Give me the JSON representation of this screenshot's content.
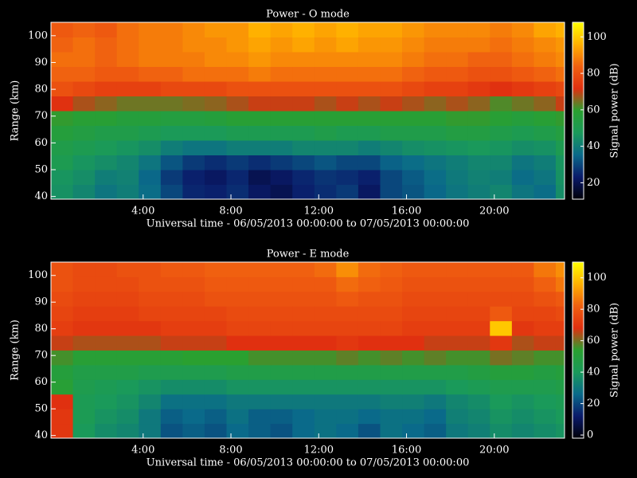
{
  "chart_data": [
    {
      "type": "heatmap",
      "title": "Power - O mode",
      "xlabel": "Universal time - 06/05/2013 00:00:00 to 07/05/2013 00:00:00",
      "ylabel": "Range (km)",
      "colorbar_label": "Signal power (dB)",
      "xlim": [
        -0.2,
        23.2
      ],
      "xticks": [
        {
          "value": 4,
          "label": "4:00"
        },
        {
          "value": 8,
          "label": "8:00"
        },
        {
          "value": 12,
          "label": "12:00"
        },
        {
          "value": 16,
          "label": "16:00"
        },
        {
          "value": 20,
          "label": "20:00"
        }
      ],
      "ylim": [
        39,
        105
      ],
      "yticks": [
        40,
        50,
        60,
        70,
        80,
        90,
        100
      ],
      "clim": [
        11,
        108
      ],
      "cticks": [
        20,
        40,
        60,
        80,
        100
      ],
      "colormap": [
        "#000008",
        "#0a1a6a",
        "#0a6a8a",
        "#1a9a5a",
        "#2aa030",
        "#e03010",
        "#f06010",
        "#ffb000",
        "#ffff00"
      ],
      "xbins": [
        -0.2,
        0.8,
        1.8,
        2.8,
        3.8,
        4.8,
        5.8,
        6.8,
        7.8,
        8.8,
        9.8,
        10.8,
        11.8,
        12.8,
        13.8,
        14.8,
        15.8,
        16.8,
        17.8,
        18.8,
        19.8,
        20.8,
        21.8,
        22.8,
        23.2
      ],
      "ybins": [
        39,
        44.5,
        50,
        55.5,
        61,
        66.5,
        72,
        77.5,
        83,
        88.5,
        94,
        99.5,
        105
      ],
      "z": [
        [
          45,
          42,
          38,
          40,
          36,
          30,
          25,
          24,
          26,
          22,
          20,
          24,
          26,
          28,
          22,
          30,
          32,
          35,
          38,
          40,
          42,
          38,
          36,
          44
        ],
        [
          46,
          44,
          40,
          41,
          35,
          28,
          24,
          22,
          25,
          20,
          22,
          25,
          27,
          26,
          24,
          30,
          33,
          36,
          39,
          41,
          40,
          36,
          38,
          45
        ],
        [
          50,
          46,
          44,
          42,
          38,
          32,
          28,
          26,
          28,
          26,
          28,
          30,
          32,
          30,
          30,
          34,
          36,
          38,
          40,
          42,
          42,
          38,
          40,
          46
        ],
        [
          52,
          50,
          48,
          46,
          44,
          40,
          38,
          38,
          40,
          40,
          40,
          42,
          42,
          42,
          40,
          42,
          44,
          45,
          46,
          47,
          46,
          44,
          45,
          50
        ],
        [
          56,
          54,
          52,
          52,
          50,
          48,
          48,
          48,
          50,
          50,
          50,
          50,
          52,
          50,
          50,
          52,
          52,
          52,
          54,
          54,
          52,
          50,
          52,
          55
        ],
        [
          60,
          58,
          58,
          56,
          56,
          55,
          55,
          56,
          58,
          58,
          58,
          58,
          58,
          58,
          58,
          58,
          58,
          58,
          60,
          60,
          58,
          56,
          58,
          60
        ],
        [
          72,
          68,
          66,
          64,
          64,
          64,
          65,
          66,
          68,
          70,
          70,
          70,
          68,
          70,
          68,
          70,
          68,
          66,
          68,
          66,
          62,
          64,
          66,
          70
        ],
        [
          80,
          78,
          76,
          76,
          76,
          78,
          78,
          78,
          80,
          80,
          80,
          80,
          80,
          80,
          80,
          80,
          78,
          76,
          76,
          74,
          72,
          74,
          76,
          78
        ],
        [
          84,
          84,
          82,
          82,
          84,
          84,
          86,
          86,
          86,
          88,
          86,
          86,
          86,
          86,
          86,
          86,
          84,
          82,
          82,
          80,
          80,
          82,
          84,
          86
        ],
        [
          86,
          86,
          84,
          86,
          88,
          88,
          88,
          90,
          90,
          92,
          90,
          90,
          90,
          90,
          90,
          90,
          88,
          86,
          86,
          84,
          84,
          86,
          88,
          90
        ],
        [
          84,
          86,
          84,
          86,
          88,
          88,
          90,
          90,
          92,
          94,
          92,
          94,
          92,
          94,
          92,
          92,
          90,
          88,
          88,
          88,
          86,
          88,
          90,
          92
        ],
        [
          82,
          84,
          82,
          86,
          88,
          88,
          90,
          92,
          92,
          96,
          94,
          96,
          94,
          96,
          94,
          94,
          92,
          90,
          90,
          90,
          88,
          90,
          94,
          96
        ]
      ]
    },
    {
      "type": "heatmap",
      "title": "Power - E mode",
      "xlabel": "Universal time - 06/05/2013 00:00:00 to 07/05/2013 00:00:00",
      "ylabel": "Range (km)",
      "colorbar_label": "Signal power (dB)",
      "xlim": [
        -0.2,
        23.2
      ],
      "xticks": [
        {
          "value": 4,
          "label": "4:00"
        },
        {
          "value": 8,
          "label": "8:00"
        },
        {
          "value": 12,
          "label": "12:00"
        },
        {
          "value": 16,
          "label": "16:00"
        },
        {
          "value": 20,
          "label": "20:00"
        }
      ],
      "ylim": [
        39,
        105
      ],
      "yticks": [
        40,
        50,
        60,
        70,
        80,
        90,
        100
      ],
      "clim": [
        -2,
        110
      ],
      "cticks": [
        0,
        20,
        40,
        60,
        80,
        100
      ],
      "colormap": [
        "#000008",
        "#0a1a6a",
        "#0a6a8a",
        "#1a9a5a",
        "#2aa030",
        "#e03010",
        "#f06010",
        "#ffb000",
        "#ffff00"
      ],
      "xbins": [
        -0.2,
        0.8,
        1.8,
        2.8,
        3.8,
        4.8,
        5.8,
        6.8,
        7.8,
        8.8,
        9.8,
        10.8,
        11.8,
        12.8,
        13.8,
        14.8,
        15.8,
        16.8,
        17.8,
        18.8,
        19.8,
        20.8,
        21.8,
        22.8,
        23.2
      ],
      "ybins": [
        39,
        44.5,
        50,
        55.5,
        61,
        66.5,
        72,
        77.5,
        83,
        88.5,
        94,
        99.5,
        105
      ],
      "z": [
        [
          70,
          40,
          36,
          34,
          30,
          22,
          24,
          22,
          26,
          24,
          22,
          26,
          28,
          26,
          22,
          28,
          26,
          24,
          30,
          32,
          36,
          34,
          36,
          38
        ],
        [
          70,
          42,
          38,
          36,
          30,
          24,
          26,
          24,
          28,
          24,
          24,
          26,
          28,
          28,
          26,
          28,
          28,
          26,
          32,
          34,
          38,
          36,
          38,
          40
        ],
        [
          68,
          42,
          40,
          38,
          34,
          28,
          28,
          28,
          30,
          30,
          30,
          30,
          30,
          30,
          30,
          32,
          32,
          30,
          34,
          36,
          40,
          38,
          40,
          42
        ],
        [
          52,
          44,
          42,
          40,
          38,
          36,
          36,
          36,
          38,
          38,
          38,
          38,
          38,
          38,
          38,
          38,
          38,
          38,
          40,
          42,
          44,
          44,
          44,
          46
        ],
        [
          50,
          46,
          46,
          46,
          44,
          44,
          44,
          44,
          46,
          46,
          46,
          46,
          46,
          46,
          46,
          46,
          46,
          46,
          46,
          48,
          50,
          50,
          48,
          50
        ],
        [
          56,
          52,
          52,
          52,
          52,
          52,
          54,
          54,
          54,
          56,
          56,
          56,
          56,
          58,
          56,
          58,
          56,
          58,
          56,
          56,
          60,
          58,
          56,
          56
        ],
        [
          66,
          64,
          64,
          64,
          64,
          66,
          66,
          66,
          68,
          68,
          68,
          68,
          68,
          70,
          68,
          68,
          68,
          66,
          66,
          66,
          70,
          64,
          66,
          66
        ],
        [
          72,
          70,
          70,
          70,
          70,
          72,
          72,
          72,
          74,
          74,
          74,
          74,
          74,
          74,
          74,
          74,
          72,
          72,
          72,
          72,
          100,
          70,
          72,
          72
        ],
        [
          74,
          72,
          72,
          72,
          74,
          74,
          74,
          74,
          76,
          76,
          76,
          76,
          76,
          76,
          76,
          76,
          74,
          74,
          74,
          74,
          80,
          74,
          74,
          76
        ],
        [
          76,
          74,
          74,
          74,
          76,
          76,
          76,
          78,
          78,
          78,
          78,
          78,
          78,
          80,
          78,
          78,
          76,
          76,
          76,
          76,
          76,
          76,
          78,
          80
        ],
        [
          78,
          76,
          76,
          76,
          78,
          78,
          78,
          80,
          80,
          80,
          80,
          80,
          80,
          84,
          82,
          80,
          78,
          78,
          78,
          78,
          78,
          78,
          82,
          86
        ],
        [
          78,
          76,
          76,
          78,
          78,
          80,
          80,
          82,
          82,
          82,
          82,
          82,
          84,
          90,
          84,
          82,
          80,
          80,
          80,
          80,
          80,
          80,
          86,
          90
        ]
      ]
    }
  ]
}
